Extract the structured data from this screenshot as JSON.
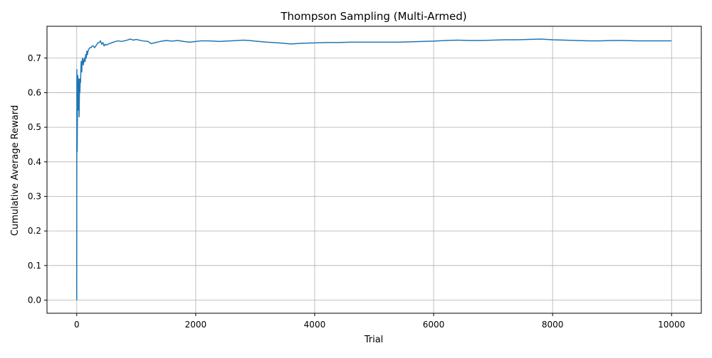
{
  "chart_data": {
    "type": "line",
    "title": "Thompson Sampling (Multi-Armed)",
    "xlabel": "Trial",
    "ylabel": "Cumulative Average Reward",
    "xlim": [
      -500,
      10500
    ],
    "ylim": [
      -0.038,
      0.792
    ],
    "xticks": [
      0,
      2000,
      4000,
      6000,
      8000,
      10000
    ],
    "xtick_labels": [
      "0",
      "2000",
      "4000",
      "6000",
      "8000",
      "10000"
    ],
    "yticks": [
      0.0,
      0.1,
      0.2,
      0.3,
      0.4,
      0.5,
      0.6,
      0.7
    ],
    "ytick_labels": [
      "0.0",
      "0.1",
      "0.2",
      "0.3",
      "0.4",
      "0.5",
      "0.6",
      "0.7"
    ],
    "grid": true,
    "line_color": "#1f77b4",
    "series": [
      {
        "x": [
          0,
          1,
          2,
          3,
          5,
          8,
          10,
          12,
          15,
          18,
          20,
          22,
          25,
          28,
          30,
          33,
          36,
          40,
          43,
          46,
          50,
          53,
          56,
          60,
          65,
          70,
          75,
          80,
          85,
          90,
          100,
          110,
          120,
          130,
          140,
          150,
          160,
          170,
          180,
          190,
          200,
          220,
          240,
          260,
          280,
          300,
          320,
          340,
          360,
          380,
          400,
          420,
          440,
          460,
          480,
          500,
          550,
          600,
          650,
          700,
          750,
          800,
          850,
          900,
          950,
          1000,
          1100,
          1200,
          1250,
          1300,
          1400,
          1500,
          1600,
          1700,
          1800,
          1900,
          2000,
          2100,
          2200,
          2300,
          2400,
          2500,
          2600,
          2700,
          2800,
          2900,
          3000,
          3200,
          3400,
          3600,
          3800,
          4000,
          4200,
          4400,
          4600,
          4800,
          5000,
          5200,
          5400,
          5600,
          5800,
          6000,
          6200,
          6400,
          6600,
          6800,
          7000,
          7200,
          7400,
          7600,
          7800,
          7900,
          8000,
          8200,
          8400,
          8600,
          8800,
          9000,
          9200,
          9400,
          9600,
          9800,
          10000
        ],
        "values": [
          0.0,
          0.5,
          0.667,
          0.6,
          0.5,
          0.43,
          0.5,
          0.56,
          0.6,
          0.65,
          0.62,
          0.58,
          0.55,
          0.6,
          0.64,
          0.62,
          0.58,
          0.53,
          0.57,
          0.61,
          0.64,
          0.6,
          0.62,
          0.64,
          0.63,
          0.67,
          0.69,
          0.68,
          0.66,
          0.69,
          0.7,
          0.68,
          0.69,
          0.7,
          0.69,
          0.71,
          0.7,
          0.72,
          0.71,
          0.72,
          0.725,
          0.73,
          0.73,
          0.735,
          0.735,
          0.73,
          0.735,
          0.74,
          0.745,
          0.745,
          0.75,
          0.74,
          0.745,
          0.735,
          0.74,
          0.738,
          0.742,
          0.745,
          0.748,
          0.75,
          0.748,
          0.75,
          0.752,
          0.755,
          0.752,
          0.754,
          0.75,
          0.748,
          0.742,
          0.744,
          0.748,
          0.751,
          0.749,
          0.751,
          0.748,
          0.746,
          0.748,
          0.75,
          0.75,
          0.749,
          0.748,
          0.749,
          0.75,
          0.751,
          0.752,
          0.751,
          0.749,
          0.746,
          0.744,
          0.741,
          0.743,
          0.744,
          0.745,
          0.745,
          0.746,
          0.746,
          0.746,
          0.746,
          0.746,
          0.747,
          0.748,
          0.749,
          0.751,
          0.752,
          0.751,
          0.751,
          0.752,
          0.753,
          0.753,
          0.754,
          0.755,
          0.754,
          0.753,
          0.752,
          0.751,
          0.75,
          0.75,
          0.751,
          0.751,
          0.75,
          0.75,
          0.75,
          0.75
        ]
      }
    ]
  }
}
